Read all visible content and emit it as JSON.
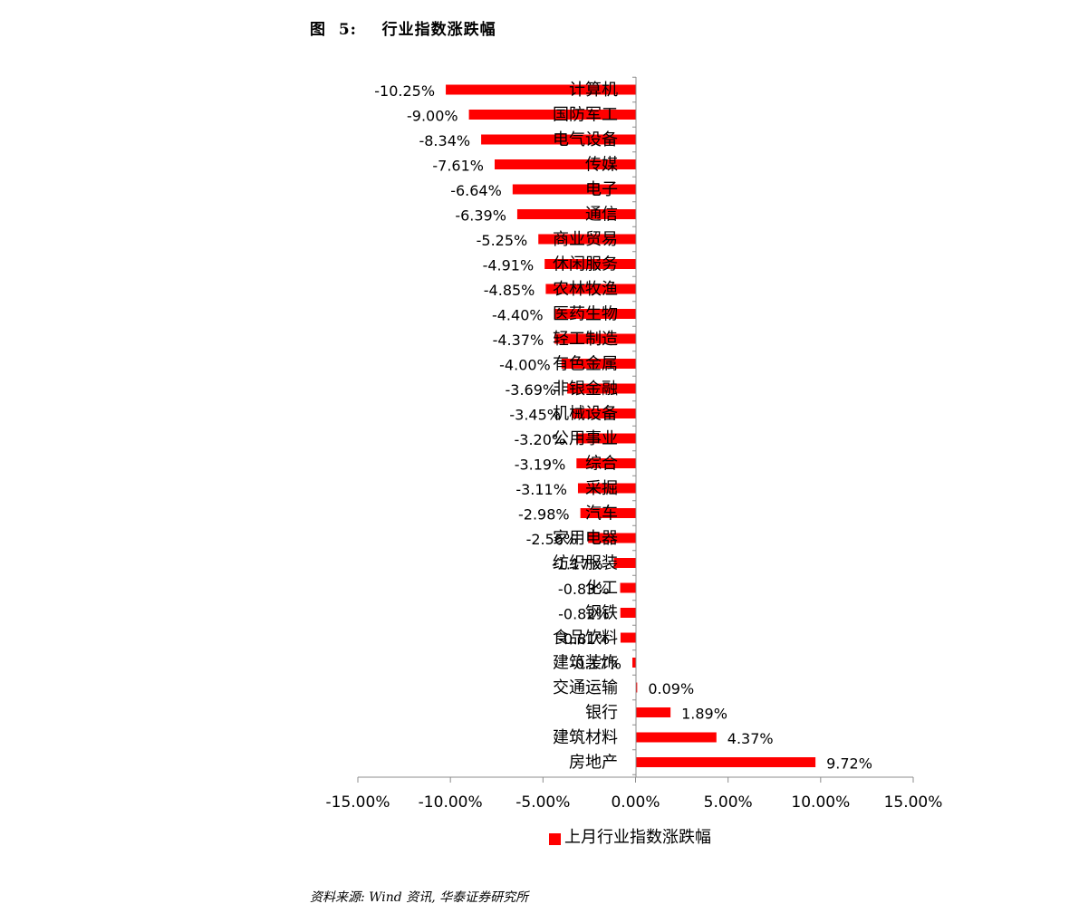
{
  "figure_title": "图  5:    行业指数涨跌幅",
  "source_note": "资料来源: Wind 资讯, 华泰证券研究所",
  "chart_data": {
    "type": "bar",
    "orientation": "horizontal",
    "categories": [
      "计算机",
      "国防军工",
      "电气设备",
      "传媒",
      "电子",
      "通信",
      "商业贸易",
      "休闲服务",
      "农林牧渔",
      "医药生物",
      "轻工制造",
      "有色金属",
      "非银金融",
      "机械设备",
      "公用事业",
      "综合",
      "采掘",
      "汽车",
      "家用电器",
      "纺织服装",
      "化工",
      "钢铁",
      "食品饮料",
      "建筑装饰",
      "交通运输",
      "银行",
      "建筑材料",
      "房地产"
    ],
    "series": [
      {
        "name": "上月行业指数涨跌幅",
        "color": "#ff0000",
        "values": [
          -10.25,
          -9.0,
          -8.34,
          -7.61,
          -6.64,
          -6.39,
          -5.25,
          -4.91,
          -4.85,
          -4.4,
          -4.37,
          -4.0,
          -3.69,
          -3.45,
          -3.2,
          -3.19,
          -3.11,
          -2.98,
          -2.56,
          -1.17,
          -0.83,
          -0.82,
          -0.81,
          -0.17,
          0.09,
          1.89,
          4.37,
          9.72
        ]
      }
    ],
    "data_labels": [
      "-10.25%",
      "-9.00%",
      "-8.34%",
      "-7.61%",
      "-6.64%",
      "-6.39%",
      "-5.25%",
      "-4.91%",
      "-4.85%",
      "-4.40%",
      "-4.37%",
      "-4.00%",
      "-3.69%",
      "-3.45%",
      "-3.20%",
      "-3.19%",
      "-3.11%",
      "-2.98%",
      "-2.56%",
      "-1.17%",
      "-0.83%",
      "-0.82%",
      "-0.81%",
      "-0.17%",
      "0.09%",
      "1.89%",
      "4.37%",
      "9.72%"
    ],
    "xlim": [
      -15,
      15
    ],
    "x_ticks": [
      -15,
      -10,
      -5,
      0,
      5,
      10,
      15
    ],
    "x_tick_labels": [
      "-15.00%",
      "-10.00%",
      "-5.00%",
      "0.00%",
      "5.00%",
      "10.00%",
      "15.00%"
    ],
    "legend_position": "bottom",
    "grid": false
  }
}
